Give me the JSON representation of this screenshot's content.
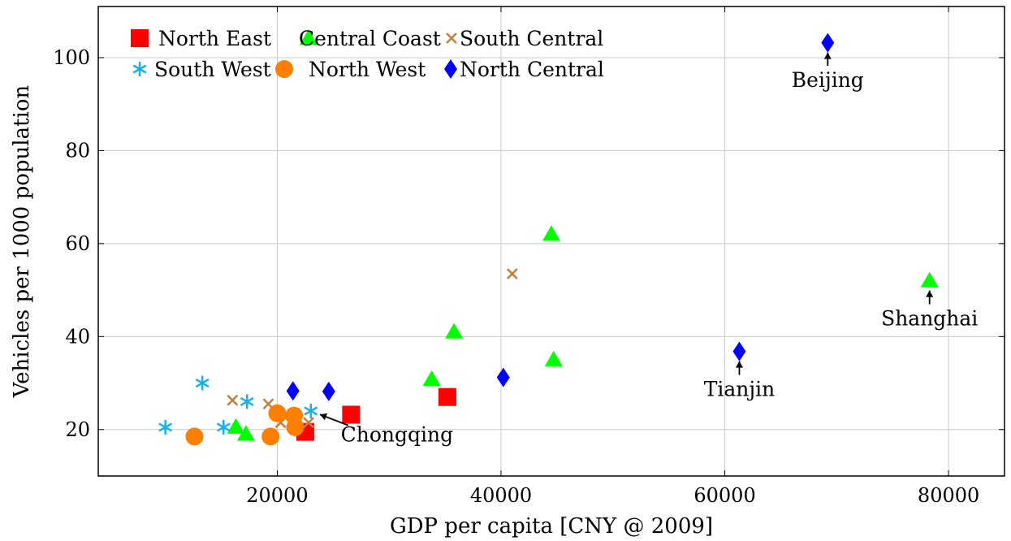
{
  "chart_data": {
    "type": "scatter",
    "xlabel": "GDP per capita [CNY @ 2009]",
    "ylabel": "Vehicles per 1000 population",
    "xlim": [
      4000,
      85000
    ],
    "ylim": [
      10,
      111
    ],
    "xticks": [
      20000,
      40000,
      60000,
      80000
    ],
    "yticks": [
      20,
      40,
      60,
      80,
      100
    ],
    "grid": true,
    "legend_position": "top-left",
    "series": [
      {
        "name": "North East",
        "marker": "square",
        "color": "#ff0000",
        "points": [
          [
            22500,
            19.5
          ],
          [
            26600,
            23.2
          ],
          [
            35200,
            27
          ]
        ]
      },
      {
        "name": "Central Coast",
        "marker": "triangle",
        "color": "#00ff00",
        "points": [
          [
            16300,
            20.5
          ],
          [
            17200,
            19
          ],
          [
            33800,
            30.8
          ],
          [
            35800,
            41
          ],
          [
            44500,
            62
          ],
          [
            44700,
            35
          ],
          [
            78300,
            52
          ]
        ]
      },
      {
        "name": "South Central",
        "marker": "cross",
        "color": "#bf8040",
        "points": [
          [
            16000,
            26.3
          ],
          [
            19200,
            25.5
          ],
          [
            20300,
            21.5
          ],
          [
            22800,
            21.5
          ],
          [
            41000,
            53.5
          ]
        ]
      },
      {
        "name": "South West",
        "marker": "asterisk",
        "color": "#1ab2e6",
        "points": [
          [
            10000,
            20.5
          ],
          [
            13300,
            30
          ],
          [
            15200,
            20.5
          ],
          [
            17300,
            26
          ],
          [
            23000,
            24
          ]
        ]
      },
      {
        "name": "North West",
        "marker": "circle",
        "color": "#ff8000",
        "points": [
          [
            12600,
            18.5
          ],
          [
            19400,
            18.5
          ],
          [
            20000,
            23.5
          ],
          [
            21500,
            23
          ],
          [
            21600,
            20.5
          ]
        ]
      },
      {
        "name": "North Central",
        "marker": "diamond",
        "color": "#0000ff",
        "points": [
          [
            21400,
            28.3
          ],
          [
            24600,
            28.2
          ],
          [
            40200,
            31.2
          ],
          [
            61300,
            36.8
          ],
          [
            69200,
            103.2
          ]
        ]
      }
    ],
    "annotations": [
      {
        "text": "Beijing",
        "point": [
          69200,
          103.2
        ],
        "label": [
          69200,
          93.7
        ]
      },
      {
        "text": "Shanghai",
        "point": [
          78300,
          52
        ],
        "label": [
          78300,
          42.4
        ]
      },
      {
        "text": "Tianjin",
        "point": [
          61300,
          36.8
        ],
        "label": [
          61300,
          27.2
        ]
      },
      {
        "text": "Chongqing",
        "point": [
          23000,
          24
        ],
        "label": [
          30700,
          17.4
        ]
      }
    ]
  }
}
